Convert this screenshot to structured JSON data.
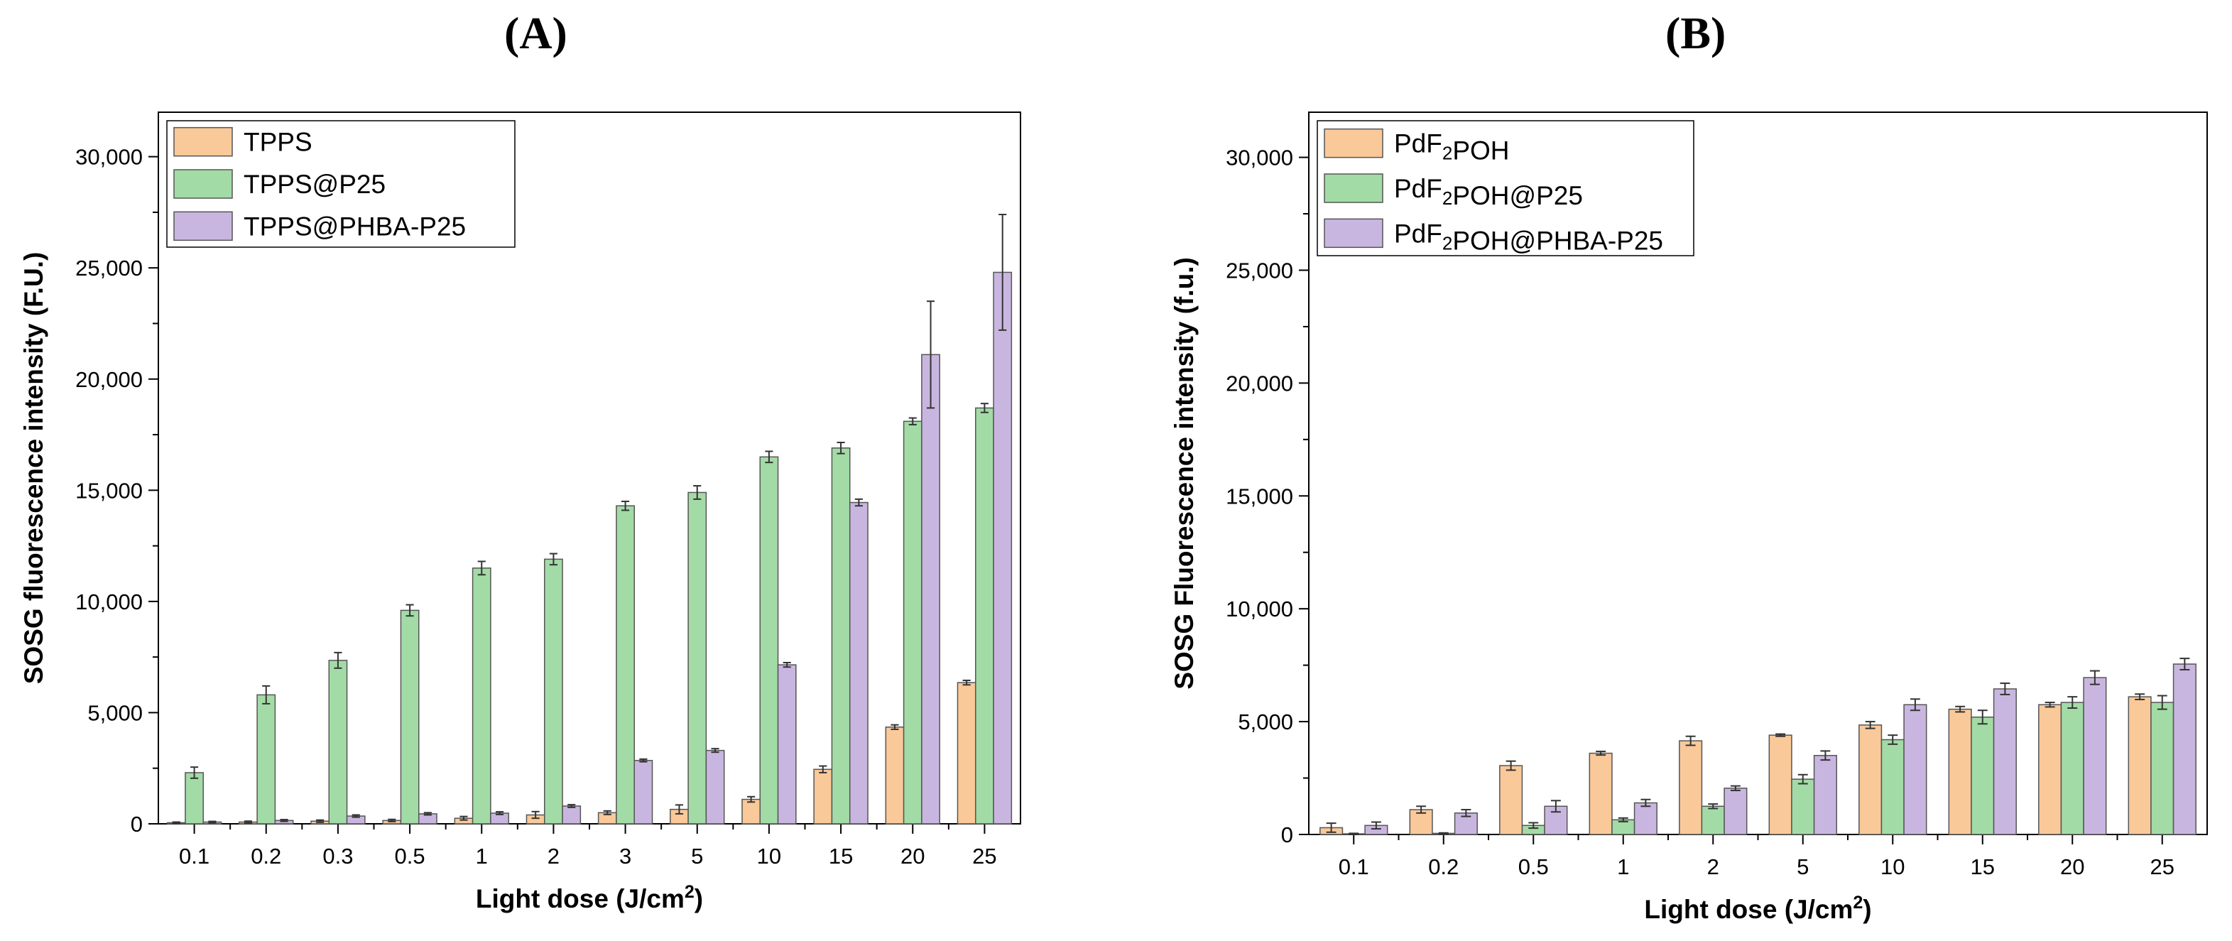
{
  "panels": {
    "a": {
      "label": "(A)"
    },
    "b": {
      "label": "(B)"
    }
  },
  "chart_data": [
    {
      "type": "bar",
      "title": "",
      "xlabel": "Light dose (J/cm",
      "xlabel_sup": "2",
      "xlabel_end": ")",
      "ylabel": "SOSG fluorescence intensity (F.U.)",
      "ylim": [
        0,
        32000
      ],
      "yticks": [
        0,
        5000,
        10000,
        15000,
        20000,
        25000,
        30000
      ],
      "ytick_labels": [
        "0",
        "5,000",
        "10,000",
        "15,000",
        "20,000",
        "25,000",
        "30,000"
      ],
      "categories": [
        "0.1",
        "0.2",
        "0.3",
        "0.5",
        "1",
        "2",
        "3",
        "5",
        "10",
        "15",
        "20",
        "25"
      ],
      "legend_position": "top-left",
      "series": [
        {
          "name": "TPPS",
          "name_parts": [
            [
              "TPPS",
              ""
            ]
          ],
          "color": "#f9c99a",
          "values": [
            50,
            80,
            120,
            150,
            250,
            400,
            500,
            650,
            1100,
            2450,
            4350,
            6350
          ],
          "errors": [
            30,
            40,
            50,
            50,
            80,
            150,
            80,
            200,
            120,
            150,
            100,
            100
          ]
        },
        {
          "name": "TPPS@P25",
          "name_parts": [
            [
              "TPPS@P25",
              ""
            ]
          ],
          "color": "#a3dba6",
          "values": [
            2300,
            5800,
            7350,
            9600,
            11500,
            11900,
            14300,
            14900,
            16500,
            16900,
            18100,
            18700
          ],
          "errors": [
            250,
            400,
            350,
            250,
            300,
            250,
            200,
            300,
            250,
            250,
            150,
            200
          ]
        },
        {
          "name": "TPPS@PHBA-P25",
          "name_parts": [
            [
              "TPPS@PHBA-P25",
              ""
            ]
          ],
          "color": "#c9b6e0",
          "values": [
            80,
            150,
            350,
            450,
            480,
            800,
            2850,
            3300,
            7150,
            14450,
            21100,
            24800
          ],
          "errors": [
            30,
            40,
            50,
            50,
            60,
            60,
            60,
            80,
            100,
            150,
            2400,
            2600
          ]
        }
      ]
    },
    {
      "type": "bar",
      "title": "",
      "xlabel": "Light dose (J/cm",
      "xlabel_sup": "2",
      "xlabel_end": ")",
      "ylabel": "SOSG Fluorescence intensity (f.u.)",
      "ylim": [
        0,
        32000
      ],
      "yticks": [
        0,
        5000,
        10000,
        15000,
        20000,
        25000,
        30000
      ],
      "ytick_labels": [
        "0",
        "5,000",
        "10,000",
        "15,000",
        "20,000",
        "25,000",
        "30,000"
      ],
      "categories": [
        "0.1",
        "0.2",
        "0.5",
        "1",
        "2",
        "5",
        "10",
        "15",
        "20",
        "25"
      ],
      "legend_position": "top-left",
      "series": [
        {
          "name": "PdF2POH",
          "name_parts": [
            [
              "PdF",
              "2"
            ],
            [
              "POH",
              ""
            ]
          ],
          "color": "#f9c99a",
          "values": [
            300,
            1100,
            3050,
            3600,
            4150,
            4400,
            4850,
            5550,
            5750,
            6100
          ],
          "errors": [
            200,
            150,
            200,
            80,
            200,
            50,
            150,
            120,
            100,
            120
          ]
        },
        {
          "name": "PdF2POH@P25",
          "name_parts": [
            [
              "PdF",
              "2"
            ],
            [
              "POH@P25",
              ""
            ]
          ],
          "color": "#a3dba6",
          "values": [
            30,
            50,
            400,
            650,
            1250,
            2450,
            4200,
            5200,
            5850,
            5850
          ],
          "errors": [
            20,
            20,
            120,
            80,
            100,
            200,
            200,
            300,
            250,
            300
          ]
        },
        {
          "name": "PdF2POH@PHBA-P25",
          "name_parts": [
            [
              "PdF",
              "2"
            ],
            [
              "POH@PHBA-P25",
              ""
            ]
          ],
          "color": "#c9b6e0",
          "values": [
            400,
            950,
            1250,
            1400,
            2050,
            3500,
            5750,
            6450,
            6950,
            7550
          ],
          "errors": [
            150,
            150,
            250,
            150,
            100,
            200,
            250,
            250,
            300,
            250
          ]
        }
      ]
    }
  ]
}
